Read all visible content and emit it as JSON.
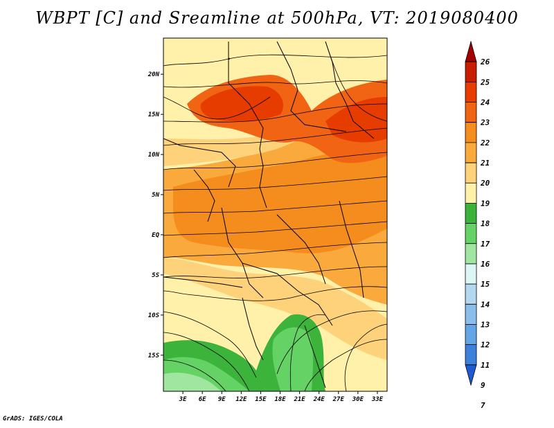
{
  "title": "WBPT [C] and Sreamline at 500hPa, VT: 2019080400",
  "credit": "GrADS: IGES/COLA",
  "map": {
    "lat_labels": [
      "20N",
      "15N",
      "10N",
      "5N",
      "EQ",
      "5S",
      "10S",
      "15S"
    ],
    "lat_values": [
      20,
      15,
      10,
      5,
      0,
      -5,
      -10,
      -15
    ],
    "lon_labels": [
      "3E",
      "6E",
      "9E",
      "12E",
      "15E",
      "18E",
      "21E",
      "24E",
      "27E",
      "30E",
      "33E"
    ],
    "lon_values": [
      3,
      6,
      9,
      12,
      15,
      18,
      21,
      24,
      27,
      30,
      33
    ],
    "lon_range": [
      0,
      34.5
    ],
    "lat_range": [
      -19.5,
      24.5
    ]
  },
  "colorbar": {
    "labels": [
      "26",
      "25",
      "24",
      "23",
      "22",
      "21",
      "20",
      "19",
      "18",
      "17",
      "16",
      "15",
      "14",
      "13",
      "12",
      "11",
      "9",
      "7"
    ],
    "colors": [
      "#a50000",
      "#c81e00",
      "#e63c00",
      "#f06414",
      "#f58c1e",
      "#faaa3c",
      "#fdd27a",
      "#fff0aa",
      "#3cb43c",
      "#64d264",
      "#a0e6a0",
      "#dcf5f5",
      "#b4d7f0",
      "#8cbeeb",
      "#64a5e6",
      "#3c82dc",
      "#1e5ad2"
    ]
  }
}
